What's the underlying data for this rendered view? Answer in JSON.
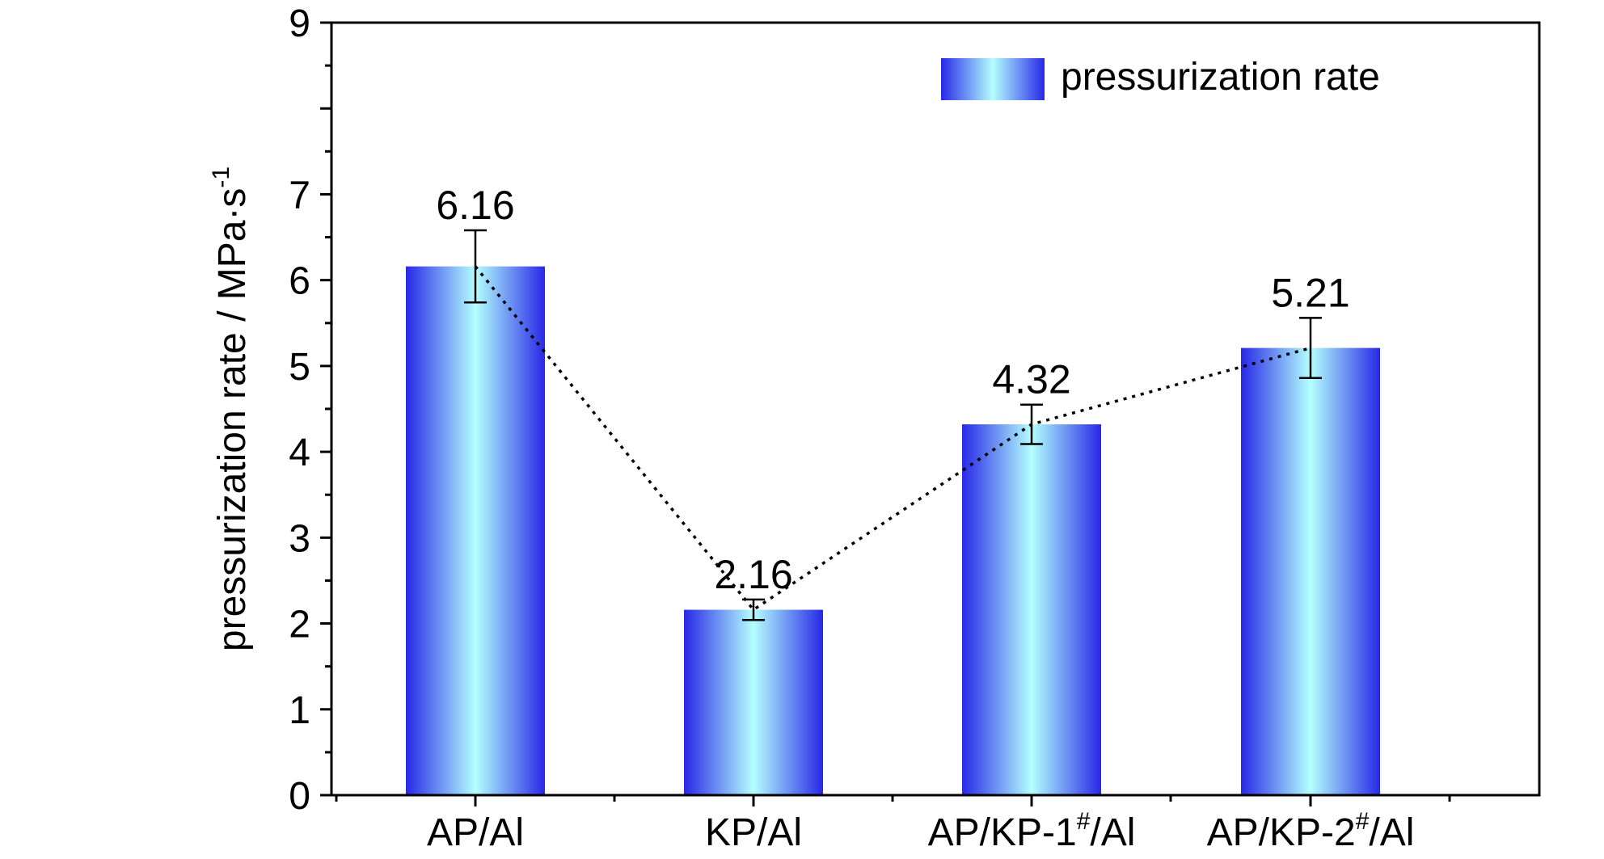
{
  "chart_data": {
    "type": "bar",
    "categories": [
      "AP/Al",
      "KP/Al",
      "AP/KP-1#/Al",
      "AP/KP-2#/Al"
    ],
    "category_parts": [
      {
        "main": "AP/Al",
        "sup": "",
        "tail": ""
      },
      {
        "main": "KP/Al",
        "sup": "",
        "tail": ""
      },
      {
        "main": "AP/KP-1",
        "sup": "#",
        "tail": "/Al"
      },
      {
        "main": "AP/KP-2",
        "sup": "#",
        "tail": "/Al"
      }
    ],
    "series": [
      {
        "name": "pressurization rate",
        "values": [
          6.16,
          2.16,
          4.32,
          5.21
        ],
        "error": [
          0.42,
          0.12,
          0.23,
          0.35
        ],
        "data_labels": [
          "6.16",
          "2.16",
          "4.32",
          "5.21"
        ]
      }
    ],
    "ylabel": "pressurization rate / MPa·s",
    "ylabel_sup": "-1",
    "xlabel": "",
    "title": "",
    "ylim": [
      0,
      9
    ],
    "yticks": [
      "0",
      "1",
      "2",
      "3",
      "4",
      "5",
      "6",
      "7",
      "8",
      "9"
    ],
    "ytick_labels_shown": [
      "0",
      "1",
      "2",
      "3",
      "4",
      "5",
      "6",
      "7",
      "",
      "9"
    ],
    "connecting_line": "dotted",
    "legend_position": "top-right",
    "bar_colors": {
      "edge": "#2828e6",
      "center": "#b4ffff"
    }
  }
}
